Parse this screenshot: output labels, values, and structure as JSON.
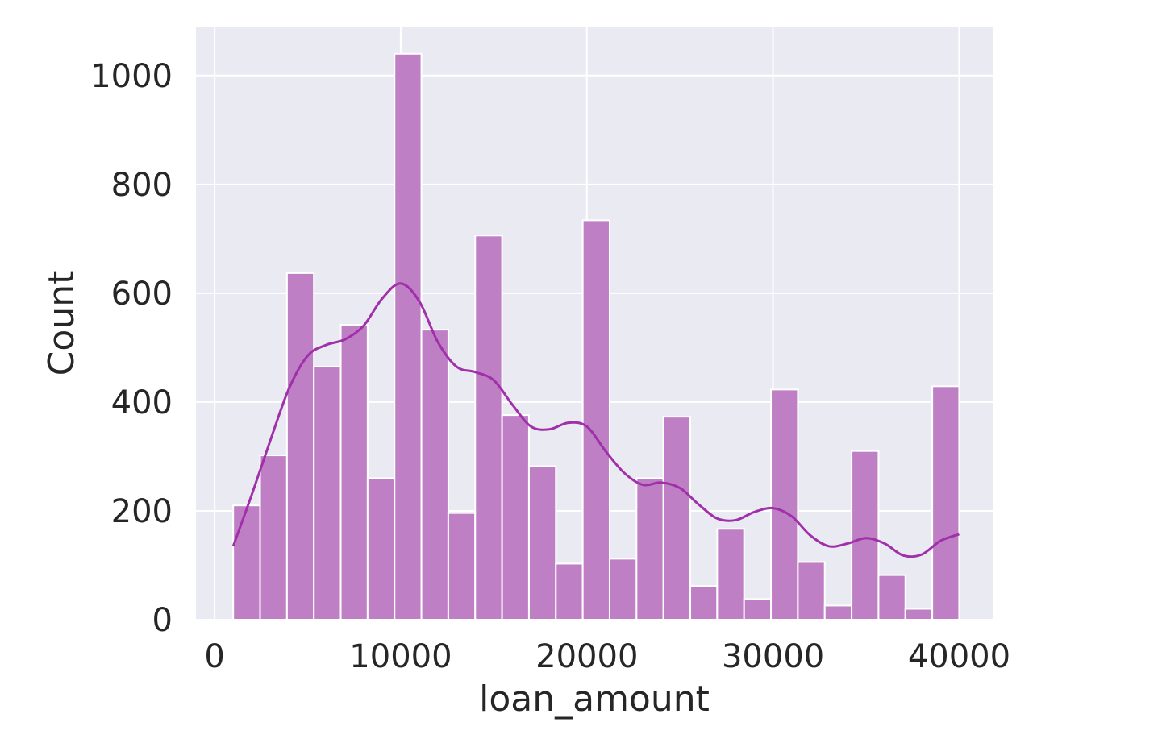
{
  "chart_data": {
    "type": "bar",
    "subtype": "histogram-with-kde",
    "title": "",
    "xlabel": "loan_amount",
    "ylabel": "Count",
    "xlim": [
      -1000,
      41800
    ],
    "ylim": [
      0,
      1090
    ],
    "xticks": [
      0,
      10000,
      20000,
      30000,
      40000
    ],
    "xtick_labels": [
      "0",
      "10000",
      "20000",
      "30000",
      "40000"
    ],
    "yticks": [
      0,
      200,
      400,
      600,
      800,
      1000
    ],
    "ytick_labels": [
      "0",
      "200",
      "400",
      "600",
      "800",
      "1000"
    ],
    "grid": true,
    "legend": "none",
    "background_color": "#eaeaf2",
    "bar_color": "#bf7fc4",
    "bar_edge_color": "#ffffff",
    "kde_color": "#a030aa",
    "grid_color": "#ffffff",
    "bins": [
      {
        "start": 1000,
        "end": 2444,
        "count": 210
      },
      {
        "start": 2444,
        "end": 3889,
        "count": 302
      },
      {
        "start": 3889,
        "end": 5333,
        "count": 637
      },
      {
        "start": 5333,
        "end": 6778,
        "count": 465
      },
      {
        "start": 6778,
        "end": 8222,
        "count": 542
      },
      {
        "start": 8222,
        "end": 9667,
        "count": 260
      },
      {
        "start": 9667,
        "end": 11111,
        "count": 1040
      },
      {
        "start": 11111,
        "end": 12556,
        "count": 533
      },
      {
        "start": 12556,
        "end": 14000,
        "count": 196
      },
      {
        "start": 14000,
        "end": 15444,
        "count": 706
      },
      {
        "start": 15444,
        "end": 16889,
        "count": 376
      },
      {
        "start": 16889,
        "end": 18333,
        "count": 282
      },
      {
        "start": 18333,
        "end": 19778,
        "count": 103
      },
      {
        "start": 19778,
        "end": 21222,
        "count": 734
      },
      {
        "start": 21222,
        "end": 22667,
        "count": 112
      },
      {
        "start": 22667,
        "end": 24111,
        "count": 260
      },
      {
        "start": 24111,
        "end": 25556,
        "count": 373
      },
      {
        "start": 25556,
        "end": 27000,
        "count": 62
      },
      {
        "start": 27000,
        "end": 28444,
        "count": 167
      },
      {
        "start": 28444,
        "end": 29889,
        "count": 38
      },
      {
        "start": 29889,
        "end": 31333,
        "count": 423
      },
      {
        "start": 31333,
        "end": 32778,
        "count": 106
      },
      {
        "start": 32778,
        "end": 34222,
        "count": 26
      },
      {
        "start": 34222,
        "end": 35667,
        "count": 310
      },
      {
        "start": 35667,
        "end": 37111,
        "count": 82
      },
      {
        "start": 37111,
        "end": 38556,
        "count": 20
      },
      {
        "start": 38556,
        "end": 40000,
        "count": 429
      }
    ],
    "kde": [
      {
        "x": 1000,
        "y": 135
      },
      {
        "x": 2000,
        "y": 230
      },
      {
        "x": 3000,
        "y": 330
      },
      {
        "x": 4000,
        "y": 425
      },
      {
        "x": 5000,
        "y": 485
      },
      {
        "x": 6000,
        "y": 505
      },
      {
        "x": 7000,
        "y": 515
      },
      {
        "x": 8000,
        "y": 540
      },
      {
        "x": 9000,
        "y": 590
      },
      {
        "x": 10000,
        "y": 618
      },
      {
        "x": 11000,
        "y": 585
      },
      {
        "x": 12000,
        "y": 510
      },
      {
        "x": 13000,
        "y": 465
      },
      {
        "x": 14000,
        "y": 455
      },
      {
        "x": 15000,
        "y": 440
      },
      {
        "x": 16000,
        "y": 395
      },
      {
        "x": 17000,
        "y": 355
      },
      {
        "x": 18000,
        "y": 350
      },
      {
        "x": 19000,
        "y": 362
      },
      {
        "x": 20000,
        "y": 355
      },
      {
        "x": 21000,
        "y": 310
      },
      {
        "x": 22000,
        "y": 270
      },
      {
        "x": 23000,
        "y": 248
      },
      {
        "x": 24000,
        "y": 252
      },
      {
        "x": 25000,
        "y": 242
      },
      {
        "x": 26000,
        "y": 212
      },
      {
        "x": 27000,
        "y": 186
      },
      {
        "x": 28000,
        "y": 183
      },
      {
        "x": 29000,
        "y": 198
      },
      {
        "x": 30000,
        "y": 205
      },
      {
        "x": 31000,
        "y": 190
      },
      {
        "x": 32000,
        "y": 155
      },
      {
        "x": 33000,
        "y": 135
      },
      {
        "x": 34000,
        "y": 140
      },
      {
        "x": 35000,
        "y": 150
      },
      {
        "x": 36000,
        "y": 140
      },
      {
        "x": 37000,
        "y": 118
      },
      {
        "x": 38000,
        "y": 120
      },
      {
        "x": 39000,
        "y": 145
      },
      {
        "x": 40000,
        "y": 157
      }
    ]
  }
}
